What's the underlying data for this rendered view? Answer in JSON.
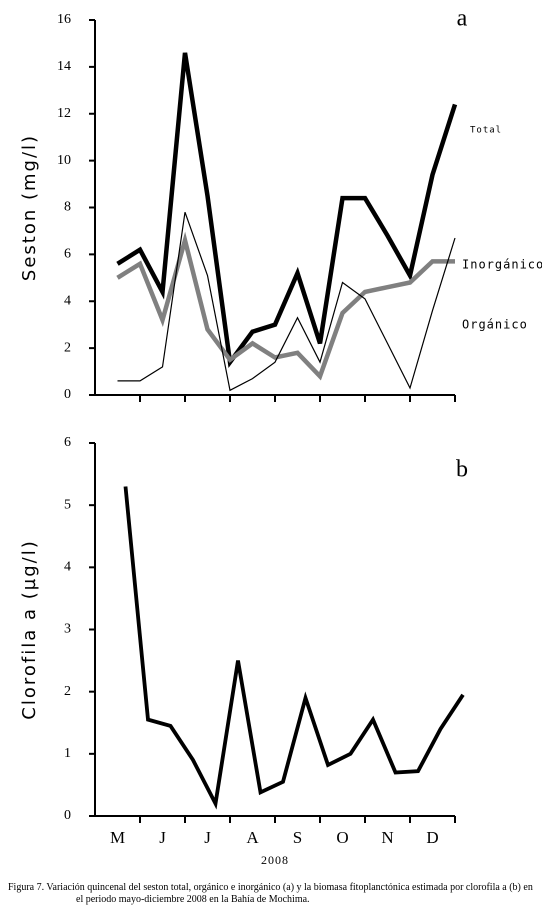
{
  "chart_data": [
    {
      "type": "line",
      "panel_label": "a",
      "ylabel": "Seston (mg/l)",
      "ylim": [
        0,
        16
      ],
      "yticks": [
        0,
        2,
        4,
        6,
        8,
        10,
        12,
        14,
        16
      ],
      "series": [
        {
          "name": "Total",
          "color": "#000000",
          "values": [
            5.6,
            6.2,
            4.4,
            14.6,
            8.5,
            1.4,
            2.7,
            3.0,
            5.2,
            2.2,
            8.4,
            8.4,
            6.8,
            5.1,
            9.4,
            12.4
          ]
        },
        {
          "name": "Inorgánico",
          "color": "#808080",
          "values": [
            5.0,
            5.6,
            3.2,
            6.6,
            2.8,
            1.5,
            2.2,
            1.6,
            1.8,
            0.8,
            3.5,
            4.4,
            4.6,
            4.8,
            5.7,
            5.7
          ]
        },
        {
          "name": "Orgánico",
          "color": "#000000",
          "values": [
            0.6,
            0.6,
            1.2,
            7.8,
            5.1,
            0.2,
            0.7,
            1.4,
            3.3,
            1.4,
            4.8,
            4.1,
            2.2,
            0.3,
            3.6,
            6.7
          ]
        }
      ]
    },
    {
      "type": "line",
      "panel_label": "b",
      "ylabel": "Clorofila a (µg/l)",
      "xlabel": "2008",
      "categories": [
        "M",
        null,
        "J",
        null,
        "J",
        null,
        "A",
        null,
        "S",
        null,
        "O",
        null,
        "N",
        null,
        "D",
        null
      ],
      "ylim": [
        0,
        6
      ],
      "yticks": [
        0,
        1,
        2,
        3,
        4,
        5,
        6
      ],
      "series": [
        {
          "name": "Clorofila a",
          "color": "#000000",
          "values": [
            5.3,
            1.55,
            1.45,
            0.9,
            0.2,
            2.5,
            0.38,
            0.55,
            1.9,
            0.82,
            1.0,
            1.55,
            0.7,
            0.72,
            1.4,
            1.95
          ]
        }
      ]
    }
  ],
  "caption": "Figura 7. Variación quincenal del seston total, orgánico e inorgánico (a) y la biomasa fitoplanctónica estimada por clorofila a (b) en el periodo mayo-diciembre 2008 en la Bahía de Mochima."
}
